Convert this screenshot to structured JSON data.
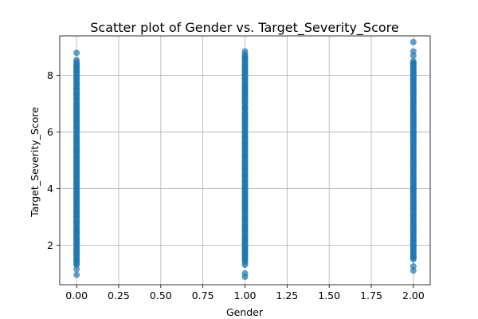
{
  "chart_data": {
    "type": "scatter",
    "title": "Scatter plot of Gender vs. Target_Severity_Score",
    "xlabel": "Gender",
    "ylabel": "Target_Severity_Score",
    "xlim": [
      -0.1,
      2.1
    ],
    "ylim": [
      0.6,
      9.4
    ],
    "xticks": [
      0.0,
      0.25,
      0.5,
      0.75,
      1.0,
      1.25,
      1.5,
      1.75,
      2.0
    ],
    "xtick_labels": [
      "0.00",
      "0.25",
      "0.50",
      "0.75",
      "1.00",
      "1.25",
      "1.50",
      "1.75",
      "2.00"
    ],
    "yticks": [
      2,
      4,
      6,
      8
    ],
    "ytick_labels": [
      "2",
      "4",
      "6",
      "8"
    ],
    "grid": true,
    "marker_color": "#1f77b4",
    "marker_alpha": 0.7,
    "groups": [
      {
        "x": 0,
        "y_min": 0.92,
        "y_max": 8.8,
        "dense_min": 1.3,
        "dense_max": 8.45,
        "outliers": [
          8.8,
          8.55,
          1.15,
          0.95
        ]
      },
      {
        "x": 1,
        "y_min": 0.88,
        "y_max": 8.85,
        "dense_min": 1.4,
        "dense_max": 8.7,
        "outliers": [
          8.85,
          8.75,
          1.3,
          1.0,
          0.88
        ]
      },
      {
        "x": 2,
        "y_min": 1.1,
        "y_max": 9.18,
        "dense_min": 1.5,
        "dense_max": 8.5,
        "outliers": [
          9.18,
          8.85,
          8.7,
          1.25,
          1.1
        ]
      }
    ]
  }
}
